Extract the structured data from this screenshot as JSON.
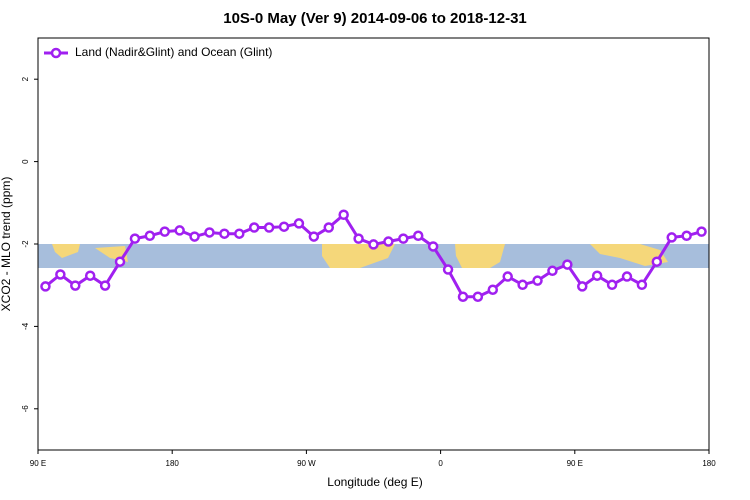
{
  "chart_data": {
    "type": "line",
    "title": "10S-0 May (Ver 9)   2014-09-06 to 2018-12-31",
    "x_label": "Longitude (deg E)",
    "y_label": "XCO2 - MLO trend (ppm)",
    "x": [
      95,
      105,
      115,
      125,
      135,
      145,
      155,
      165,
      175,
      185,
      195,
      205,
      215,
      225,
      235,
      245,
      255,
      265,
      275,
      285,
      295,
      305,
      315,
      325,
      335,
      345,
      355,
      365,
      375,
      385,
      395,
      405,
      415,
      425,
      435,
      445,
      455,
      465,
      475,
      485,
      495,
      505,
      515,
      525,
      535
    ],
    "series": [
      {
        "name": "Land (Nadir&Glint) and Ocean (Glint)",
        "color": "#a020f0",
        "values": [
          -3.03,
          -2.74,
          -3.01,
          -2.77,
          -3.01,
          -2.43,
          -1.87,
          -1.8,
          -1.7,
          -1.67,
          -1.82,
          -1.72,
          -1.75,
          -1.75,
          -1.6,
          -1.6,
          -1.58,
          -1.5,
          -1.82,
          -1.6,
          -1.29,
          -1.87,
          -2.01,
          -1.94,
          -1.87,
          -1.8,
          -2.06,
          -2.62,
          -3.28,
          -3.28,
          -3.11,
          -2.79,
          -2.99,
          -2.89,
          -2.65,
          -2.5,
          -3.03,
          -2.77,
          -2.99,
          -2.79,
          -2.99,
          -2.43,
          -1.84,
          -1.8,
          -1.7
        ]
      }
    ],
    "xlim": [
      90,
      540
    ],
    "xticks": [
      {
        "value": 90,
        "label": "90 E"
      },
      180,
      {
        "value": 270,
        "label": "90 W"
      },
      {
        "value": 360,
        "label": "0"
      },
      {
        "value": 450,
        "label": "90 E"
      },
      {
        "value": 540,
        "label": "180"
      }
    ],
    "ylim": [
      -7,
      3
    ],
    "yticks": [
      2,
      0,
      -2,
      -4,
      -6
    ],
    "legend": "top-left"
  }
}
